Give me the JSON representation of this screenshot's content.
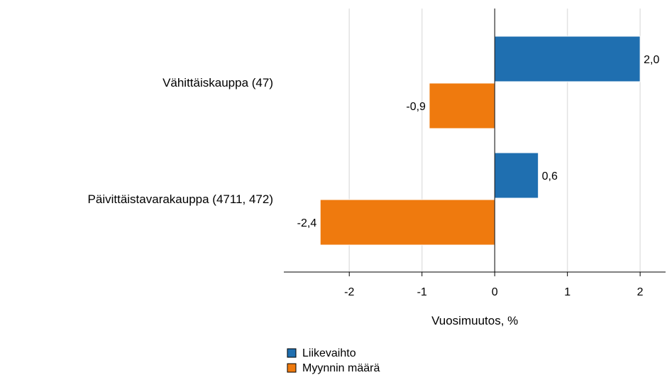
{
  "chart_data": {
    "type": "bar",
    "orientation": "horizontal",
    "categories": [
      "Vähittäiskauppa (47)",
      "Päivittäistavarakauppa (4711, 472)"
    ],
    "series": [
      {
        "name": "Liikevaihto",
        "color": "#1f6fb0",
        "values": [
          2.0,
          0.6
        ]
      },
      {
        "name": "Myynnin määrä",
        "color": "#ef7a0e",
        "values": [
          -0.9,
          -2.4
        ]
      }
    ],
    "data_labels": [
      [
        "2,0",
        "0,6"
      ],
      [
        "-0,9",
        "-2,4"
      ]
    ],
    "xlabel": "Vuosimuutos, %",
    "xticks": [
      -2,
      -1,
      0,
      1,
      2
    ],
    "xtick_labels": [
      "-2",
      "-1",
      "0",
      "1",
      "2"
    ],
    "xlim": [
      -2.9,
      2.35
    ],
    "grid": "vertical",
    "legend": "bottom-left"
  }
}
